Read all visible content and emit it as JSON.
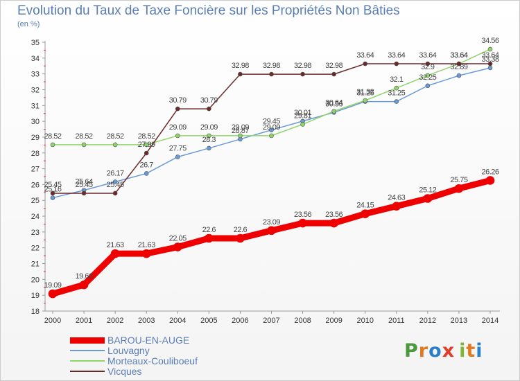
{
  "header": {
    "title": "Evolution du Taux de Taxe Foncière sur les Propriétés Non Bâties",
    "subtitle": "(en %)"
  },
  "logo": {
    "text": "Prox iti",
    "letters": [
      "P",
      "r",
      "o",
      "x",
      "i",
      "t",
      "i"
    ],
    "colors": [
      "#4a9a3d",
      "#e07a22",
      "#2a7fc8",
      "#e23b2a",
      "#7fb534",
      "#e07a22",
      "#2a7fc8"
    ]
  },
  "chart_data": {
    "type": "line",
    "x": [
      2000,
      2001,
      2002,
      2003,
      2004,
      2005,
      2006,
      2007,
      2008,
      2009,
      2010,
      2011,
      2012,
      2013,
      2014
    ],
    "ylim": [
      18,
      35
    ],
    "yticks": [
      18,
      19,
      20,
      21,
      22,
      23,
      24,
      25,
      26,
      27,
      28,
      29,
      30,
      31,
      32,
      33,
      34,
      35
    ],
    "grid": false,
    "legend": "bottom-left",
    "series": [
      {
        "name": "BAROU-EN-AUGE",
        "color": "#ee0000",
        "width": 9,
        "values": [
          19.09,
          19.66,
          21.63,
          21.63,
          22.05,
          22.6,
          22.6,
          23.09,
          23.56,
          23.56,
          24.15,
          24.63,
          25.12,
          25.75,
          26.26
        ],
        "labels": [
          "19.09",
          "19.66",
          "21.63",
          "21.63",
          "22.05",
          "22.6",
          "22.6",
          "23.09",
          "23.56",
          "23.56",
          "24.15",
          "24.63",
          "25.12",
          "25.75",
          "26.26"
        ]
      },
      {
        "name": "Louvagny",
        "color": "#6a9ad6",
        "width": 1.5,
        "values": [
          25.16,
          25.64,
          26.17,
          26.7,
          27.75,
          28.3,
          28.87,
          29.45,
          30.01,
          30.56,
          31.25,
          31.25,
          32.25,
          32.89,
          33.38
        ],
        "labels": [
          "25.16",
          "25.64",
          "26.17",
          "26.7",
          "27.75",
          "28.3",
          "28.87",
          "29.45",
          "30.01",
          "30.56",
          "31.25",
          "31.25",
          "32.25",
          "32.89",
          "33.38"
        ]
      },
      {
        "name": "Morteaux-Couliboeuf",
        "color": "#8ed66a",
        "width": 1.5,
        "values": [
          28.52,
          28.52,
          28.52,
          28.52,
          29.09,
          29.09,
          29.09,
          29.09,
          29.81,
          30.64,
          31.32,
          32.1,
          32.9,
          33.64,
          34.56
        ],
        "labels": [
          "28.52",
          "28.52",
          "28.52",
          "28.52",
          "29.09",
          "29.09",
          "29.09",
          "29.09",
          "29.81",
          "30.64",
          "31.32",
          "32.1",
          "32.9",
          "33.64",
          "34.56"
        ]
      },
      {
        "name": "Vicques",
        "color": "#6b2a2a",
        "width": 1.5,
        "values": [
          25.45,
          25.45,
          25.45,
          27.99,
          30.79,
          30.79,
          32.98,
          32.98,
          32.98,
          32.98,
          33.64,
          33.64,
          33.64,
          33.64,
          33.64
        ],
        "labels": [
          "25.45",
          "25.45",
          "25.45",
          "27.99",
          "30.79",
          "30.79",
          "32.98",
          "32.98",
          "32.98",
          "32.98",
          "33.64",
          "33.64",
          "33.64",
          "33.64",
          "33.64"
        ]
      }
    ]
  }
}
